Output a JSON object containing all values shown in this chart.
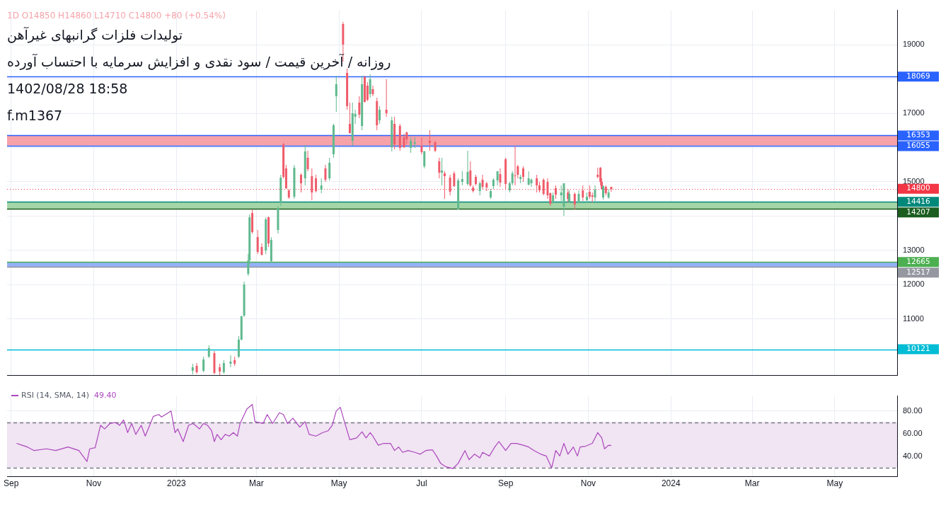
{
  "chart_data": [
    {
      "type": "candlestick",
      "title": "تولیدات فلزات گرانبهای غیرآهن",
      "subtitle": "روزانه / آخرین قیمت / سود نقدی و افزایش سرمایه با احتساب آورده",
      "annotations": [
        "1D O14850 H14860 L14710 C14800 +80 (+0.54%)",
        "1402/08/28 18:58",
        "f.m1367"
      ],
      "x": [
        "2023-01-13",
        "2023-01-16",
        "2023-01-21",
        "2023-01-25",
        "2023-01-29",
        "2023-02-02",
        "2023-02-05",
        "2023-02-10",
        "2023-02-13",
        "2023-02-16",
        "2023-02-18",
        "2023-02-20",
        "2023-02-23",
        "2023-02-24",
        "2023-02-26",
        "2023-03-02",
        "2023-03-05",
        "2023-03-08",
        "2023-03-10",
        "2023-03-12",
        "2023-03-17",
        "2023-03-19",
        "2023-03-21",
        "2023-03-23",
        "2023-03-25",
        "2023-03-29",
        "2023-04-03",
        "2023-04-06",
        "2023-04-08",
        "2023-04-11",
        "2023-04-14",
        "2023-04-18",
        "2023-04-21",
        "2023-04-24",
        "2023-04-27",
        "2023-04-29",
        "2023-05-04",
        "2023-05-07",
        "2023-05-09",
        "2023-05-11",
        "2023-05-13",
        "2023-05-16",
        "2023-05-18",
        "2023-05-20",
        "2023-05-22",
        "2023-05-24",
        "2023-05-26",
        "2023-05-29",
        "2023-05-31",
        "2023-06-05",
        "2023-06-09",
        "2023-06-11",
        "2023-06-15",
        "2023-06-18",
        "2023-06-20",
        "2023-06-23",
        "2023-06-26",
        "2023-07-01",
        "2023-07-03",
        "2023-07-07",
        "2023-07-11",
        "2023-07-14",
        "2023-07-16",
        "2023-07-18",
        "2023-07-22",
        "2023-07-25",
        "2023-07-28",
        "2023-07-31",
        "2023-08-04",
        "2023-08-06",
        "2023-08-08",
        "2023-08-10",
        "2023-08-13",
        "2023-08-15",
        "2023-08-18",
        "2023-08-21",
        "2023-08-23",
        "2023-08-26",
        "2023-08-28",
        "2023-09-01",
        "2023-09-04",
        "2023-09-06",
        "2023-09-08",
        "2023-09-10",
        "2023-09-12",
        "2023-09-14",
        "2023-09-18",
        "2023-09-20",
        "2023-09-24",
        "2023-09-26",
        "2023-09-29",
        "2023-10-02",
        "2023-10-04",
        "2023-10-06",
        "2023-10-08",
        "2023-10-12",
        "2023-10-14",
        "2023-10-17",
        "2023-10-18",
        "2023-10-22",
        "2023-10-25",
        "2023-10-28",
        "2023-10-31",
        "2023-11-02",
        "2023-11-04",
        "2023-11-06",
        "2023-11-08",
        "2023-11-10",
        "2023-11-11",
        "2023-11-12",
        "2023-11-14",
        "2023-11-16",
        "2023-11-18"
      ],
      "ohlc": [
        [
          9500,
          9700,
          9380,
          9600
        ],
        [
          9640,
          9720,
          9400,
          9450
        ],
        [
          9500,
          9900,
          9450,
          9820
        ],
        [
          9900,
          10240,
          9860,
          10150
        ],
        [
          10000,
          10060,
          9380,
          9440
        ],
        [
          9600,
          9700,
          9360,
          9480
        ],
        [
          9450,
          9800,
          9400,
          9720
        ],
        [
          9700,
          9950,
          9600,
          9760
        ],
        [
          9800,
          9900,
          9640,
          9700
        ],
        [
          9900,
          10500,
          9860,
          10400
        ],
        [
          10400,
          11100,
          10380,
          11080
        ],
        [
          11100,
          12100,
          11050,
          12000
        ],
        [
          12320,
          12900,
          12250,
          12700
        ],
        [
          12700,
          14050,
          12600,
          13960
        ],
        [
          14100,
          14200,
          13500,
          13540
        ],
        [
          13400,
          13600,
          12900,
          12950
        ],
        [
          13100,
          13200,
          12850,
          12880
        ],
        [
          13000,
          13960,
          12900,
          13900
        ],
        [
          13960,
          13980,
          13100,
          13200
        ],
        [
          12680,
          13400,
          12640,
          13300
        ],
        [
          13600,
          14300,
          13500,
          14240
        ],
        [
          14380,
          15200,
          14300,
          15120
        ],
        [
          16100,
          16140,
          15100,
          15140
        ],
        [
          15400,
          15500,
          14800,
          14820
        ],
        [
          14760,
          14800,
          14500,
          14540
        ],
        [
          14560,
          15500,
          14500,
          15420
        ],
        [
          15200,
          15250,
          14700,
          14960
        ],
        [
          15100,
          16080,
          14900,
          15880
        ],
        [
          15700,
          15900,
          15300,
          15380
        ],
        [
          15160,
          15400,
          14460,
          14700
        ],
        [
          15100,
          15200,
          14700,
          14740
        ],
        [
          14780,
          15100,
          14680,
          14900
        ],
        [
          15400,
          15500,
          15000,
          15060
        ],
        [
          15100,
          15700,
          15050,
          15560
        ],
        [
          15800,
          16700,
          15700,
          16650
        ],
        [
          17500,
          18100,
          17050,
          17840
        ],
        [
          19600,
          19660,
          18500,
          19000
        ],
        [
          18180,
          18300,
          17100,
          17200
        ],
        [
          16700,
          17300,
          16400,
          16420
        ],
        [
          16200,
          17300,
          16060,
          17000
        ],
        [
          16900,
          17100,
          16700,
          16980
        ],
        [
          17300,
          17500,
          16850,
          16950
        ],
        [
          16620,
          18100,
          16500,
          17840
        ],
        [
          18060,
          18100,
          17300,
          17340
        ],
        [
          17800,
          17900,
          17350,
          17400
        ],
        [
          17560,
          18140,
          17450,
          18000
        ],
        [
          17700,
          17800,
          17500,
          17560
        ],
        [
          17360,
          17450,
          16500,
          16660
        ],
        [
          16800,
          17200,
          16700,
          17100
        ],
        [
          17100,
          18000,
          16900,
          17000
        ],
        [
          16020,
          16900,
          15880,
          16800
        ],
        [
          16700,
          16900,
          15950,
          16100
        ],
        [
          16620,
          16700,
          15900,
          16000
        ],
        [
          16300,
          16400,
          16000,
          16020
        ],
        [
          16440,
          16460,
          16100,
          16240
        ],
        [
          16000,
          16300,
          15850,
          16200
        ],
        [
          16120,
          16300,
          16000,
          16160
        ],
        [
          16060,
          16300,
          15800,
          15860
        ],
        [
          15460,
          15900,
          15400,
          15880
        ],
        [
          16200,
          16500,
          15900,
          16140
        ],
        [
          16160,
          16200,
          15860,
          15900
        ],
        [
          15600,
          15700,
          15100,
          15260
        ],
        [
          15260,
          15700,
          14900,
          15340
        ],
        [
          15240,
          15300,
          14500,
          15160
        ],
        [
          15120,
          15200,
          14600,
          14720
        ],
        [
          15240,
          15300,
          14860,
          14880
        ],
        [
          14200,
          15100,
          14200,
          15040
        ],
        [
          15000,
          15300,
          14900,
          15080
        ],
        [
          14940,
          15900,
          14900,
          15280
        ],
        [
          15340,
          15600,
          14860,
          14900
        ],
        [
          14840,
          14900,
          14700,
          14740
        ],
        [
          15140,
          15200,
          14900,
          14940
        ],
        [
          14740,
          15000,
          14600,
          14960
        ],
        [
          15060,
          15200,
          14800,
          14860
        ],
        [
          14960,
          15000,
          14740,
          14840
        ],
        [
          14540,
          14800,
          14500,
          14740
        ],
        [
          14880,
          15100,
          14800,
          15060
        ],
        [
          15040,
          15300,
          14900,
          15300
        ],
        [
          15220,
          15400,
          14850,
          14980
        ],
        [
          15660,
          15700,
          14800,
          14940
        ],
        [
          14760,
          15000,
          14700,
          14960
        ],
        [
          14960,
          15300,
          14900,
          15240
        ],
        [
          15180,
          16060,
          14900,
          15160
        ],
        [
          15460,
          15500,
          15100,
          15200
        ],
        [
          15080,
          15200,
          14950,
          15140
        ],
        [
          15400,
          15450,
          15000,
          15140
        ],
        [
          14920,
          15300,
          14900,
          15100
        ],
        [
          14960,
          15100,
          14850,
          15060
        ],
        [
          15100,
          15200,
          14700,
          14900
        ],
        [
          14900,
          15000,
          14700,
          14760
        ],
        [
          15060,
          15100,
          14600,
          14640
        ],
        [
          15000,
          15100,
          14500,
          14600
        ],
        [
          14660,
          14700,
          14300,
          14360
        ],
        [
          14400,
          14700,
          14350,
          14600
        ],
        [
          14820,
          14900,
          14500,
          14620
        ],
        [
          14600,
          14900,
          14450,
          14700
        ],
        [
          14280,
          14960,
          14000,
          14960
        ],
        [
          14700,
          14800,
          14400,
          14500
        ],
        [
          14420,
          14760,
          14400,
          14640
        ],
        [
          14640,
          14700,
          14200,
          14340
        ],
        [
          14400,
          14760,
          14350,
          14640
        ],
        [
          14760,
          14900,
          14450,
          14540
        ],
        [
          14460,
          14700,
          14400,
          14560
        ],
        [
          14720,
          14900,
          14500,
          14560
        ],
        [
          14600,
          14700,
          14400,
          14560
        ],
        [
          14540,
          14900,
          14450,
          14780
        ],
        [
          15200,
          15420,
          15100,
          15140
        ],
        [
          15420,
          15440,
          14900,
          15000
        ],
        [
          15000,
          15100,
          14800,
          14800
        ],
        [
          14540,
          14900,
          14480,
          14880
        ],
        [
          14860,
          14900,
          14600,
          14660
        ],
        [
          14540,
          14800,
          14500,
          14700
        ],
        [
          14850,
          14860,
          14710,
          14800
        ]
      ],
      "xlim": [
        "2022-08-29",
        "2024-06-16"
      ],
      "ylim": [
        9360,
        20000
      ],
      "yticks": [
        11000,
        12000,
        13000,
        {
          "value": 14000,
          "label": null
        },
        15000,
        {
          "value": 16000,
          "label": null
        },
        17000,
        {
          "value": 18000,
          "label": null
        },
        19000
      ],
      "xticks": [
        {
          "value": "2022-09-01",
          "label": null
        },
        {
          "value": "2022-11-01",
          "label": null
        },
        {
          "value": "2023-01-01",
          "label": null
        },
        {
          "value": "2023-03-01",
          "label": null
        },
        {
          "value": "2023-05-01",
          "label": null
        },
        {
          "value": "2023-07-01",
          "label": null
        },
        {
          "value": "2023-09-01",
          "label": null
        },
        {
          "value": "2023-11-01",
          "label": null
        },
        {
          "value": "2024-01-01",
          "label": null
        },
        {
          "value": "2024-03-01",
          "label": null
        },
        {
          "value": "2024-05-01",
          "label": null
        }
      ],
      "tick_labels": "y",
      "grid": true,
      "bands": [
        {
          "axis": "y",
          "from": 16055,
          "to": 16353,
          "color": "#f7a1a8"
        },
        {
          "axis": "y",
          "from": 14207,
          "to": 14416,
          "color": "#a5d6a7"
        },
        {
          "axis": "y",
          "from": 12517,
          "to": 12665,
          "color": "#93b1f7"
        }
      ],
      "ref_lines": [
        {
          "axis": "y",
          "value": 18069,
          "label": "18069",
          "color": "#2962ff"
        },
        {
          "axis": "y",
          "value": 16353,
          "label": "16353",
          "color": "#2962ff"
        },
        {
          "axis": "y",
          "value": 16055,
          "label": "16055",
          "color": "#2962ff"
        },
        {
          "axis": "y",
          "value": 14800,
          "label": "14800",
          "color": "#f23645",
          "line_style": "dotted"
        },
        {
          "axis": "y",
          "value": 14416,
          "label": "14416",
          "color": "#00897b"
        },
        {
          "axis": "y",
          "value": 14207,
          "label": "14207",
          "color": "#1b5e20"
        },
        {
          "axis": "y",
          "value": 12665,
          "label": "12665",
          "color": "#4caf50"
        },
        {
          "axis": "y",
          "value": 12517,
          "label": "12517",
          "color": "#9598a1"
        },
        {
          "axis": "y",
          "value": 10121,
          "label": "10121",
          "color": "#00bcd4"
        }
      ]
    },
    {
      "type": "line",
      "annotations": [
        "49.40"
      ],
      "legend": "top left",
      "series": [
        {
          "name": "RSI (14, SMA, 14)",
          "color": "#ab47bc",
          "x": [
            "2022-09-05",
            "2022-09-09",
            "2022-09-13",
            "2022-09-18",
            "2022-09-27",
            "2022-10-04",
            "2022-10-13",
            "2022-10-21",
            "2022-10-23",
            "2022-10-27",
            "2022-10-29",
            "2022-11-02",
            "2022-11-06",
            "2022-11-09",
            "2022-11-13",
            "2022-11-17",
            "2022-11-20",
            "2022-11-23",
            "2022-11-26",
            "2022-11-29",
            "2022-12-02",
            "2022-12-06",
            "2022-12-09",
            "2022-12-15",
            "2022-12-19",
            "2022-12-21",
            "2022-12-26",
            "2022-12-28",
            "2022-12-31",
            "2023-01-02",
            "2023-01-06",
            "2023-01-10",
            "2023-01-13",
            "2023-01-15",
            "2023-01-18",
            "2023-01-21",
            "2023-01-24",
            "2023-01-27",
            "2023-01-29",
            "2023-01-31",
            "2023-02-03",
            "2023-02-06",
            "2023-02-09",
            "2023-02-12",
            "2023-02-15",
            "2023-02-17",
            "2023-02-22",
            "2023-02-26",
            "2023-02-28",
            "2023-03-06",
            "2023-03-09",
            "2023-03-13",
            "2023-03-18",
            "2023-03-21",
            "2023-03-24",
            "2023-03-28",
            "2023-04-02",
            "2023-04-06",
            "2023-04-09",
            "2023-04-14",
            "2023-04-19",
            "2023-04-23",
            "2023-04-26",
            "2023-04-29",
            "2023-05-02",
            "2023-05-05",
            "2023-05-09",
            "2023-05-14",
            "2023-05-18",
            "2023-05-21",
            "2023-05-24",
            "2023-05-26",
            "2023-05-30",
            "2023-06-03",
            "2023-06-08",
            "2023-06-11",
            "2023-06-14",
            "2023-06-17",
            "2023-06-21",
            "2023-06-26",
            "2023-06-30",
            "2023-07-04",
            "2023-07-09",
            "2023-07-12",
            "2023-07-15",
            "2023-07-19",
            "2023-07-24",
            "2023-07-28",
            "2023-08-02",
            "2023-08-05",
            "2023-08-09",
            "2023-08-13",
            "2023-08-15",
            "2023-08-20",
            "2023-08-24",
            "2023-08-27",
            "2023-09-01",
            "2023-09-05",
            "2023-09-09",
            "2023-09-14",
            "2023-09-18",
            "2023-09-22",
            "2023-09-27",
            "2023-10-01",
            "2023-10-05",
            "2023-10-08",
            "2023-10-11",
            "2023-10-14",
            "2023-10-17",
            "2023-10-21",
            "2023-10-24",
            "2023-10-26",
            "2023-10-30",
            "2023-11-04",
            "2023-11-08",
            "2023-11-11",
            "2023-11-13",
            "2023-11-16",
            "2023-11-18"
          ],
          "values": [
            51.3,
            49.7,
            48.1,
            45.0,
            46.5,
            45.0,
            48.1,
            45.0,
            41.8,
            35.4,
            46.5,
            47.5,
            67.2,
            64.0,
            68.8,
            69.7,
            67.2,
            72.0,
            60.8,
            68.8,
            59.2,
            67.2,
            57.7,
            75.1,
            76.7,
            74.5,
            78.3,
            79.9,
            60.8,
            64.0,
            52.9,
            67.2,
            68.8,
            67.2,
            64.0,
            68.8,
            67.2,
            62.4,
            52.9,
            59.2,
            54.5,
            59.2,
            57.7,
            60.8,
            57.7,
            68.8,
            81.5,
            85.6,
            70.4,
            68.8,
            76.7,
            68.8,
            78.3,
            76.7,
            68.8,
            73.5,
            65.6,
            70.4,
            59.2,
            57.7,
            60.8,
            62.4,
            67.2,
            79.9,
            83.0,
            70.4,
            54.5,
            56.1,
            61.5,
            56.1,
            60.8,
            57.7,
            49.7,
            51.3,
            51.3,
            45.0,
            48.1,
            43.4,
            45.0,
            43.4,
            41.8,
            45.0,
            45.6,
            40.2,
            33.8,
            30.7,
            29.1,
            33.8,
            45.0,
            37.0,
            41.8,
            38.6,
            43.4,
            40.2,
            48.1,
            52.9,
            45.0,
            51.3,
            51.3,
            49.7,
            48.1,
            45.0,
            41.8,
            40.2,
            29.7,
            45.0,
            40.2,
            51.3,
            41.8,
            48.1,
            40.2,
            48.1,
            48.8,
            51.3,
            60.8,
            56.1,
            46.5,
            49.7,
            49.4
          ]
        }
      ],
      "xlim": [
        "2022-08-29",
        "2024-06-16"
      ],
      "ylim": [
        22,
        93
      ],
      "yticks": [
        {
          "value": 40,
          "label": "40.00"
        },
        {
          "value": 60,
          "label": "60.00"
        },
        {
          "value": 80,
          "label": "80.00"
        }
      ],
      "xticks": [
        {
          "value": "2022-09-01",
          "label": "Sep"
        },
        {
          "value": "2022-11-01",
          "label": "Nov"
        },
        {
          "value": "2023-01-01",
          "label": "2023"
        },
        {
          "value": "2023-03-01",
          "label": "Mar"
        },
        {
          "value": "2023-05-01",
          "label": "May"
        },
        {
          "value": "2023-07-01",
          "label": "Jul"
        },
        {
          "value": "2023-09-01",
          "label": "Sep"
        },
        {
          "value": "2023-11-01",
          "label": "Nov"
        },
        {
          "value": "2024-01-01",
          "label": "2024"
        },
        {
          "value": "2024-03-01",
          "label": "Mar"
        },
        {
          "value": "2024-05-01",
          "label": "May"
        }
      ],
      "grid": true,
      "bands": [
        {
          "axis": "y",
          "from": 30,
          "to": 70,
          "color": "#f1e4f3"
        }
      ],
      "ref_lines": [
        {
          "axis": "y",
          "value": 70,
          "color": "#787b86",
          "line_style": "dashed"
        },
        {
          "axis": "y",
          "value": 30,
          "color": "#787b86",
          "line_style": "dashed"
        }
      ]
    }
  ]
}
